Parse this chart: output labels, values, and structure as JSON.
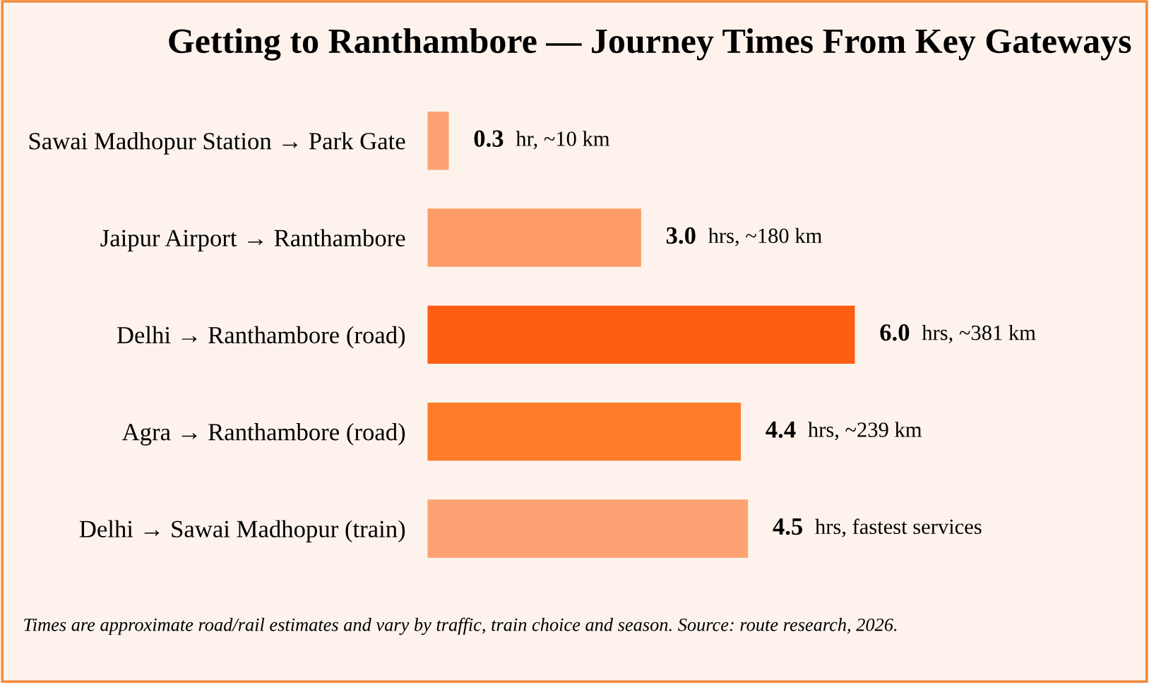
{
  "chart_data": {
    "type": "bar",
    "orientation": "horizontal",
    "title": "Getting to Ranthambore — Journey Times From Key Gateways",
    "categories": [
      "Sawai Madhopur Station → Park Gate",
      "Jaipur Airport → Ranthambore",
      "Delhi → Ranthambore (road)",
      "Agra → Ranthambore (road)",
      "Delhi → Sawai Madhopur (train)"
    ],
    "values": [
      0.3,
      3.0,
      6.0,
      4.4,
      4.5
    ],
    "colors": [
      "#fda272",
      "#fd9b68",
      "#fe5e14",
      "#fd7d2a",
      "#fda272"
    ],
    "value_labels": [
      "0.3  hr, ~10 km",
      "3.0  hrs, ~180 km",
      "6.0  hrs, ~381 km",
      "4.4  hrs, ~239 km",
      "4.5  hrs, fastest services"
    ],
    "annotations": [
      "Times are approximate road/rail estimates and vary by traffic, train choice and season. Source: route research, 2026."
    ],
    "grid": false,
    "legend": false
  }
}
